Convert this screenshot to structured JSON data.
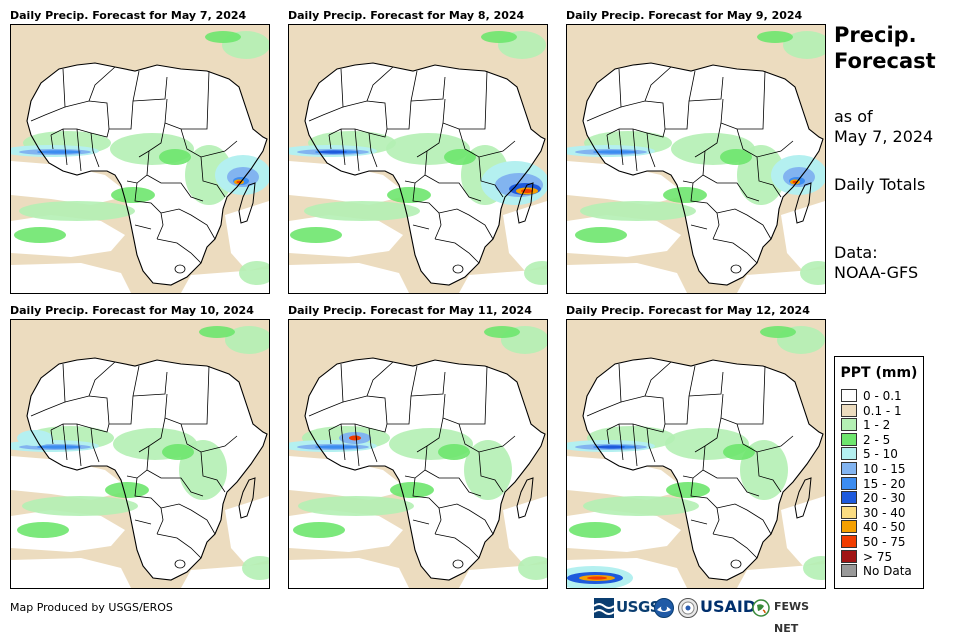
{
  "panels": [
    {
      "title": "Daily Precip. Forecast for May 7, 2024",
      "hotspot": "east",
      "band": "normal",
      "extra": "sw_heavy_none"
    },
    {
      "title": "Daily Precip. Forecast for May 8, 2024",
      "hotspot": "madagascar",
      "band": "strong",
      "extra": "none"
    },
    {
      "title": "Daily Precip. Forecast for May 9, 2024",
      "hotspot": "east",
      "band": "normal",
      "extra": "none"
    },
    {
      "title": "Daily Precip. Forecast for May 10, 2024",
      "hotspot": "none",
      "band": "west",
      "extra": "none"
    },
    {
      "title": "Daily Precip. Forecast for May 11, 2024",
      "hotspot": "westafrica",
      "band": "normal",
      "extra": "none"
    },
    {
      "title": "Daily Precip. Forecast for May 12, 2024",
      "hotspot": "southwest",
      "band": "strong",
      "extra": "none"
    }
  ],
  "sidebar": {
    "title_line1": "Precip.",
    "title_line2": "Forecast",
    "asof_line1": "as of",
    "asof_line2": "May 7, 2024",
    "totals": "Daily Totals",
    "data_line1": "Data:",
    "data_line2": "NOAA-GFS"
  },
  "legend": {
    "title": "PPT (mm)",
    "items": [
      {
        "label": "0 - 0.1",
        "color": "#ffffff"
      },
      {
        "label": "0.1 - 1",
        "color": "#ecdcbf"
      },
      {
        "label": "1 - 2",
        "color": "#b4f0b4"
      },
      {
        "label": "2 - 5",
        "color": "#6ee66e"
      },
      {
        "label": "5 - 10",
        "color": "#b4f0f0"
      },
      {
        "label": "10 - 15",
        "color": "#82b4f0"
      },
      {
        "label": "15 - 20",
        "color": "#3c8cf0"
      },
      {
        "label": "20 - 30",
        "color": "#1e5adc"
      },
      {
        "label": "30 - 40",
        "color": "#fadc82"
      },
      {
        "label": "40 - 50",
        "color": "#f5a000"
      },
      {
        "label": "50 - 75",
        "color": "#f03c00"
      },
      {
        "label": "> 75",
        "color": "#a01414"
      },
      {
        "label": "No Data",
        "color": "#999999"
      }
    ]
  },
  "footer": {
    "credit": "Map Produced by USGS/EROS",
    "logo_usgs": "USGS",
    "logo_usaid": "USAID",
    "logo_fews": "FEWS NET"
  },
  "colors": {
    "tan": "#ecdcbf",
    "light_green": "#b4f0b4",
    "green": "#6ee66e",
    "light_cyan": "#b4f0f0",
    "light_blue": "#82b4f0",
    "blue": "#3c8cf0",
    "dark_blue": "#1e5adc",
    "yellow": "#fadc82",
    "orange": "#f5a000",
    "red_orange": "#f03c00",
    "dark_red": "#a01414"
  }
}
